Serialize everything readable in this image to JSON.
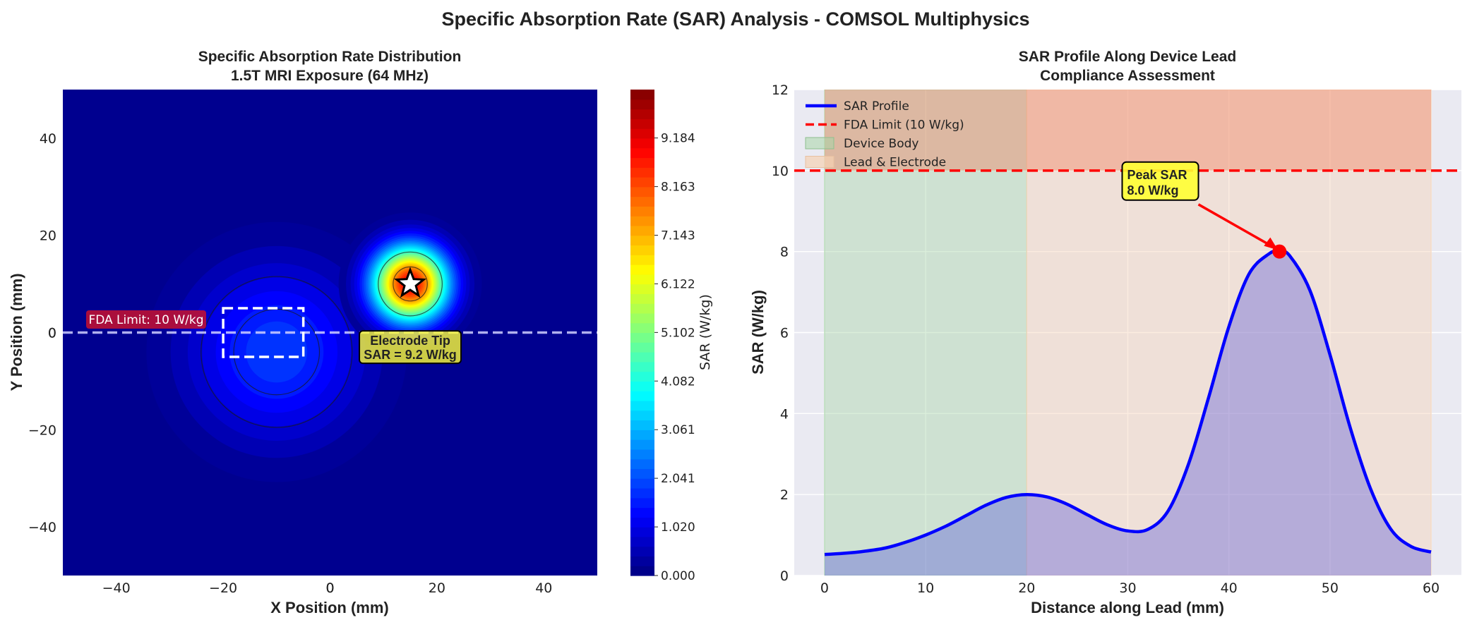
{
  "suptitle": "Specific Absorption Rate (SAR) Analysis - COMSOL Multiphysics",
  "colors": {
    "field_background": "#00008f",
    "grid_panel_bg": "#eaeaf2",
    "profile_line": "#0000ff",
    "fda_line": "#ff0000",
    "device_body_fill": "#a8d5a8",
    "lead_fill": "#f5d2b4",
    "above_limit_fill": "#f08060",
    "peak_marker": "#ff0000",
    "annotation_box": "#ffff33",
    "fda_label_box": "#c8102e"
  },
  "chart_data": [
    {
      "type": "heatmap",
      "title": "Specific Absorption Rate Distribution\n1.5T MRI Exposure (64 MHz)",
      "xlabel": "X Position (mm)",
      "ylabel": "Y Position (mm)",
      "xlim": [
        -50,
        50
      ],
      "ylim": [
        -50,
        50
      ],
      "xticks": [
        -40,
        -20,
        0,
        20,
        40
      ],
      "yticks": [
        -40,
        -20,
        0,
        20,
        40
      ],
      "colormap": "jet",
      "colorbar": {
        "label": "SAR (W/kg)",
        "ticks": [
          "0.000",
          "1.020",
          "2.041",
          "3.061",
          "4.082",
          "5.102",
          "6.122",
          "7.143",
          "8.163",
          "9.184"
        ],
        "range": [
          0,
          10.2
        ]
      },
      "hotspots": [
        {
          "name": "device_body",
          "x": -10,
          "y": -4,
          "peak": 2.0,
          "sigma": 12
        },
        {
          "name": "electrode_tip",
          "x": 15,
          "y": 10,
          "peak": 9.2,
          "sigma": 5
        }
      ],
      "device_box": {
        "x0": -20,
        "x1": -5,
        "y0": -5,
        "y1": 5
      },
      "fda_line_y": 0,
      "fda_label": "FDA Limit: 10 W/kg",
      "electrode_marker": {
        "x": 15,
        "y": 10
      },
      "electrode_annotation": [
        "Electrode Tip",
        "SAR = 9.2 W/kg"
      ],
      "electrode_annotation_pos": {
        "x": 15,
        "y": -3
      }
    },
    {
      "type": "line",
      "title": "SAR Profile Along Device Lead\nCompliance Assessment",
      "xlabel": "Distance along Lead (mm)",
      "ylabel": "SAR (W/kg)",
      "xlim": [
        -3,
        63
      ],
      "ylim": [
        0,
        12
      ],
      "xticks": [
        0,
        10,
        20,
        30,
        40,
        50,
        60
      ],
      "yticks": [
        0,
        2,
        4,
        6,
        8,
        10,
        12
      ],
      "legend": [
        "SAR Profile",
        "FDA Limit (10 W/kg)",
        "Device Body",
        "Lead & Electrode"
      ],
      "legend_position": "upper-left",
      "series": [
        {
          "name": "SAR Profile",
          "x": [
            0,
            2,
            4,
            6,
            8,
            10,
            12,
            14,
            16,
            18,
            20,
            22,
            24,
            26,
            28,
            30,
            32,
            34,
            36,
            38,
            40,
            42,
            44,
            45,
            46,
            48,
            50,
            52,
            54,
            56,
            58,
            60
          ],
          "y": [
            0.52,
            0.55,
            0.6,
            0.68,
            0.82,
            1.0,
            1.22,
            1.48,
            1.74,
            1.93,
            2.0,
            1.94,
            1.76,
            1.5,
            1.25,
            1.1,
            1.14,
            1.6,
            2.75,
            4.4,
            6.15,
            7.45,
            7.95,
            8.0,
            7.9,
            7.05,
            5.45,
            3.65,
            2.15,
            1.15,
            0.72,
            0.58
          ]
        }
      ],
      "fda_limit": 10,
      "regions": [
        {
          "name": "Device Body",
          "x0": 0,
          "x1": 20
        },
        {
          "name": "Lead & Electrode",
          "x0": 20,
          "x1": 60
        }
      ],
      "above_limit_band": {
        "x0": 0,
        "x1": 60,
        "y0": 10,
        "y1": 12
      },
      "peak": {
        "x": 45,
        "y": 8.0,
        "label": [
          "Peak SAR",
          "8.0 W/kg"
        ]
      },
      "peak_label_pos": {
        "x": 30,
        "y": 9.6
      }
    }
  ]
}
